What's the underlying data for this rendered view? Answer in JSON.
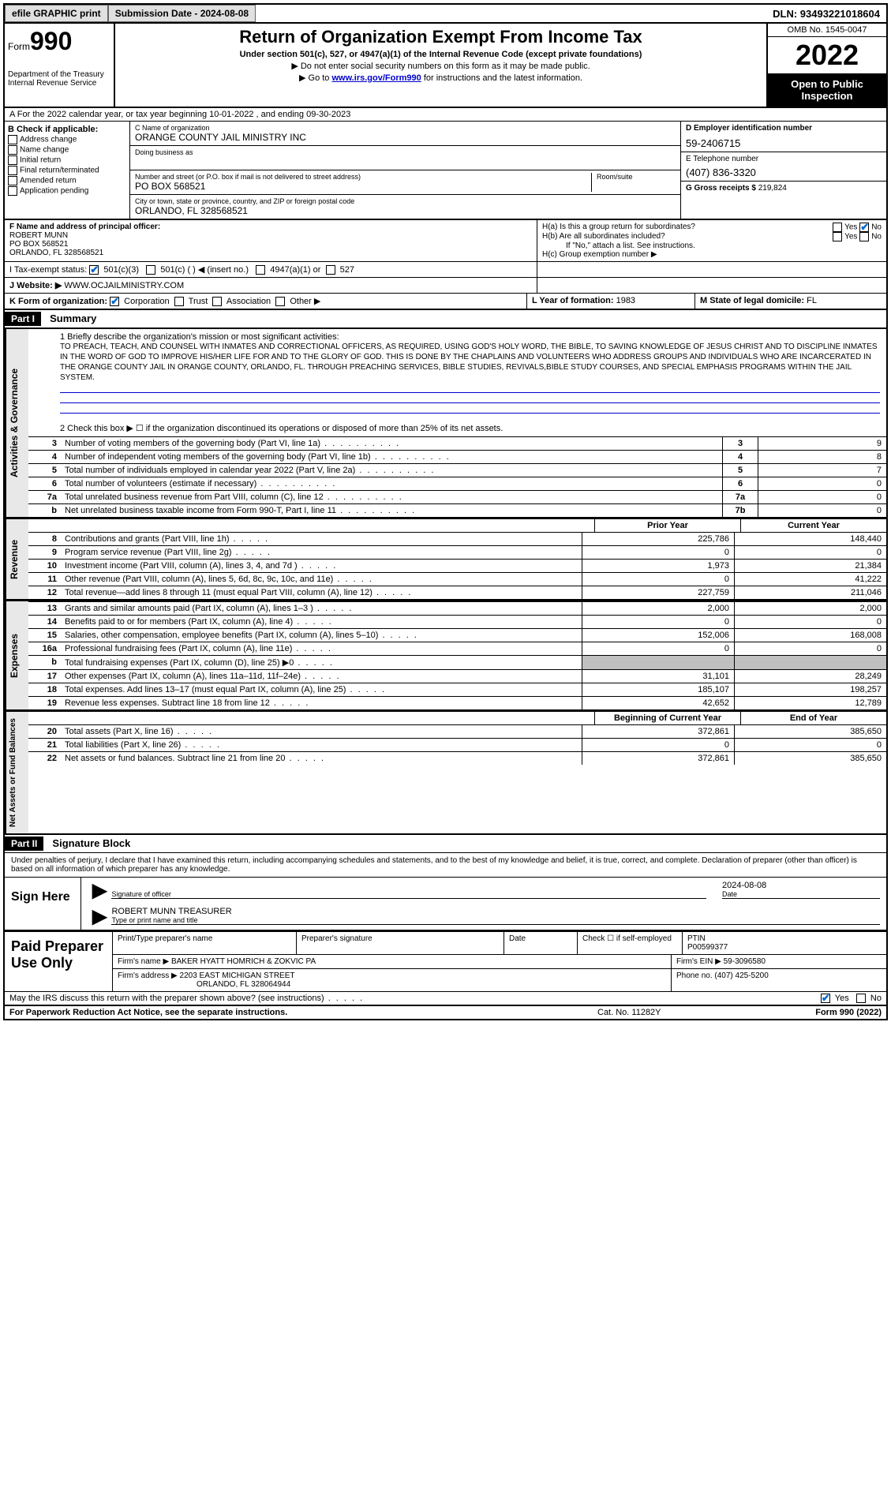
{
  "topbar": {
    "efile": "efile GRAPHIC print",
    "submission": "Submission Date - 2024-08-08",
    "dln": "DLN: 93493221018604"
  },
  "header": {
    "form_label": "Form",
    "form_num": "990",
    "title": "Return of Organization Exempt From Income Tax",
    "subtitle": "Under section 501(c), 527, or 4947(a)(1) of the Internal Revenue Code (except private foundations)",
    "note1": "▶ Do not enter social security numbers on this form as it may be made public.",
    "note2_pre": "▶ Go to ",
    "note2_link": "www.irs.gov/Form990",
    "note2_post": " for instructions and the latest information.",
    "dept": "Department of the Treasury\nInternal Revenue Service",
    "omb": "OMB No. 1545-0047",
    "year": "2022",
    "open": "Open to Public Inspection"
  },
  "section_a": "A For the 2022 calendar year, or tax year beginning 10-01-2022  , and ending 09-30-2023",
  "col_b": {
    "hdr": "B Check if applicable:",
    "opts": [
      "Address change",
      "Name change",
      "Initial return",
      "Final return/terminated",
      "Amended return",
      "Application pending"
    ]
  },
  "col_c": {
    "name_lbl": "C Name of organization",
    "name": "ORANGE COUNTY JAIL MINISTRY INC",
    "dba_lbl": "Doing business as",
    "addr_lbl": "Number and street (or P.O. box if mail is not delivered to street address)",
    "room_lbl": "Room/suite",
    "addr": "PO BOX 568521",
    "city_lbl": "City or town, state or province, country, and ZIP or foreign postal code",
    "city": "ORLANDO, FL  328568521"
  },
  "col_d": {
    "ein_lbl": "D Employer identification number",
    "ein": "59-2406715",
    "tel_lbl": "E Telephone number",
    "tel": "(407) 836-3320",
    "gross_lbl": "G Gross receipts $",
    "gross": "219,824"
  },
  "row_f": {
    "lbl": "F Name and address of principal officer:",
    "name": "ROBERT MUNN",
    "addr1": "PO BOX 568521",
    "addr2": "ORLANDO, FL  328568521"
  },
  "row_h": {
    "ha": "H(a)  Is this a group return for subordinates?",
    "hb": "H(b)  Are all subordinates included?",
    "hb_note": "If \"No,\" attach a list. See instructions.",
    "hc": "H(c)  Group exemption number ▶"
  },
  "row_i": {
    "lbl": "I   Tax-exempt status:",
    "o1": "501(c)(3)",
    "o2": "501(c) (  ) ◀ (insert no.)",
    "o3": "4947(a)(1) or",
    "o4": "527"
  },
  "row_j": {
    "lbl": "J   Website: ▶",
    "val": "WWW.OCJAILMINISTRY.COM"
  },
  "row_k": {
    "lbl": "K Form of organization:",
    "o1": "Corporation",
    "o2": "Trust",
    "o3": "Association",
    "o4": "Other ▶"
  },
  "row_l": {
    "lbl": "L Year of formation:",
    "val": "1983"
  },
  "row_m": {
    "lbl": "M State of legal domicile:",
    "val": "FL"
  },
  "part1": {
    "hdr": "Part I",
    "title": "Summary",
    "q1": "1   Briefly describe the organization's mission or most significant activities:",
    "mission": "TO PREACH, TEACH, AND COUNSEL WITH INMATES AND CORRECTIONAL OFFICERS, AS REQUIRED, USING GOD'S HOLY WORD, THE BIBLE, TO SAVING KNOWLEDGE OF JESUS CHRIST AND TO DISCIPLINE INMATES IN THE WORD OF GOD TO IMPROVE HIS/HER LIFE FOR AND TO THE GLORY OF GOD. THIS IS DONE BY THE CHAPLAINS AND VOLUNTEERS WHO ADDRESS GROUPS AND INDIVIDUALS WHO ARE INCARCERATED IN THE ORANGE COUNTY JAIL IN ORANGE COUNTY, ORLANDO, FL. THROUGH PREACHING SERVICES, BIBLE STUDIES, REVIVALS,BIBLE STUDY COURSES, AND SPECIAL EMPHASIS PROGRAMS WITHIN THE JAIL SYSTEM.",
    "q2": "2   Check this box ▶ ☐  if the organization discontinued its operations or disposed of more than 25% of its net assets.",
    "side_ag": "Activities & Governance",
    "side_rev": "Revenue",
    "side_exp": "Expenses",
    "side_net": "Net Assets or Fund Balances",
    "rows_ag": [
      {
        "n": "3",
        "t": "Number of voting members of the governing body (Part VI, line 1a)",
        "box": "3",
        "v": "9"
      },
      {
        "n": "4",
        "t": "Number of independent voting members of the governing body (Part VI, line 1b)",
        "box": "4",
        "v": "8"
      },
      {
        "n": "5",
        "t": "Total number of individuals employed in calendar year 2022 (Part V, line 2a)",
        "box": "5",
        "v": "7"
      },
      {
        "n": "6",
        "t": "Total number of volunteers (estimate if necessary)",
        "box": "6",
        "v": "0"
      },
      {
        "n": "7a",
        "t": "Total unrelated business revenue from Part VIII, column (C), line 12",
        "box": "7a",
        "v": "0"
      },
      {
        "n": "b",
        "t": "Net unrelated business taxable income from Form 990-T, Part I, line 11",
        "box": "7b",
        "v": "0"
      }
    ],
    "col_prior": "Prior Year",
    "col_current": "Current Year",
    "rows_rev": [
      {
        "n": "8",
        "t": "Contributions and grants (Part VIII, line 1h)",
        "v1": "225,786",
        "v2": "148,440"
      },
      {
        "n": "9",
        "t": "Program service revenue (Part VIII, line 2g)",
        "v1": "0",
        "v2": "0"
      },
      {
        "n": "10",
        "t": "Investment income (Part VIII, column (A), lines 3, 4, and 7d )",
        "v1": "1,973",
        "v2": "21,384"
      },
      {
        "n": "11",
        "t": "Other revenue (Part VIII, column (A), lines 5, 6d, 8c, 9c, 10c, and 11e)",
        "v1": "0",
        "v2": "41,222"
      },
      {
        "n": "12",
        "t": "Total revenue—add lines 8 through 11 (must equal Part VIII, column (A), line 12)",
        "v1": "227,759",
        "v2": "211,046"
      }
    ],
    "rows_exp": [
      {
        "n": "13",
        "t": "Grants and similar amounts paid (Part IX, column (A), lines 1–3 )",
        "v1": "2,000",
        "v2": "2,000"
      },
      {
        "n": "14",
        "t": "Benefits paid to or for members (Part IX, column (A), line 4)",
        "v1": "0",
        "v2": "0"
      },
      {
        "n": "15",
        "t": "Salaries, other compensation, employee benefits (Part IX, column (A), lines 5–10)",
        "v1": "152,006",
        "v2": "168,008"
      },
      {
        "n": "16a",
        "t": "Professional fundraising fees (Part IX, column (A), line 11e)",
        "v1": "0",
        "v2": "0"
      },
      {
        "n": "b",
        "t": "Total fundraising expenses (Part IX, column (D), line 25) ▶0",
        "v1": "",
        "v2": "",
        "shaded": true
      },
      {
        "n": "17",
        "t": "Other expenses (Part IX, column (A), lines 11a–11d, 11f–24e)",
        "v1": "31,101",
        "v2": "28,249"
      },
      {
        "n": "18",
        "t": "Total expenses. Add lines 13–17 (must equal Part IX, column (A), line 25)",
        "v1": "185,107",
        "v2": "198,257"
      },
      {
        "n": "19",
        "t": "Revenue less expenses. Subtract line 18 from line 12",
        "v1": "42,652",
        "v2": "12,789"
      }
    ],
    "col_begin": "Beginning of Current Year",
    "col_end": "End of Year",
    "rows_net": [
      {
        "n": "20",
        "t": "Total assets (Part X, line 16)",
        "v1": "372,861",
        "v2": "385,650"
      },
      {
        "n": "21",
        "t": "Total liabilities (Part X, line 26)",
        "v1": "0",
        "v2": "0"
      },
      {
        "n": "22",
        "t": "Net assets or fund balances. Subtract line 21 from line 20",
        "v1": "372,861",
        "v2": "385,650"
      }
    ]
  },
  "part2": {
    "hdr": "Part II",
    "title": "Signature Block",
    "decl": "Under penalties of perjury, I declare that I have examined this return, including accompanying schedules and statements, and to the best of my knowledge and belief, it is true, correct, and complete. Declaration of preparer (other than officer) is based on all information of which preparer has any knowledge.",
    "sign_here": "Sign Here",
    "sig_lbl": "Signature of officer",
    "date_lbl": "Date",
    "date_val": "2024-08-08",
    "name_val": "ROBERT MUNN  TREASURER",
    "name_lbl": "Type or print name and title",
    "paid": "Paid Preparer Use Only",
    "p_name_lbl": "Print/Type preparer's name",
    "p_sig_lbl": "Preparer's signature",
    "p_date_lbl": "Date",
    "p_self_lbl": "Check ☐ if self-employed",
    "p_ptin_lbl": "PTIN",
    "p_ptin": "P00599377",
    "firm_name_lbl": "Firm's name    ▶",
    "firm_name": "BAKER HYATT HOMRICH & ZOKVIC PA",
    "firm_ein_lbl": "Firm's EIN ▶",
    "firm_ein": "59-3096580",
    "firm_addr_lbl": "Firm's address ▶",
    "firm_addr1": "2203 EAST MICHIGAN STREET",
    "firm_addr2": "ORLANDO, FL  328064944",
    "firm_phone_lbl": "Phone no.",
    "firm_phone": "(407) 425-5200",
    "discuss": "May the IRS discuss this return with the preparer shown above? (see instructions)",
    "pra": "For Paperwork Reduction Act Notice, see the separate instructions.",
    "cat": "Cat. No. 11282Y",
    "form_foot": "Form 990 (2022)"
  }
}
